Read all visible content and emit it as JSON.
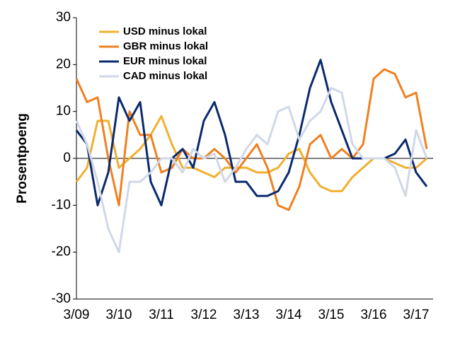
{
  "chart_data": {
    "type": "line",
    "y_label": "Prosentpoeng",
    "x": [
      "3/09",
      "6/09",
      "9/09",
      "12/09",
      "3/10",
      "6/10",
      "9/10",
      "12/10",
      "3/11",
      "6/11",
      "9/11",
      "12/11",
      "3/12",
      "6/12",
      "9/12",
      "12/12",
      "3/13",
      "6/13",
      "9/13",
      "12/13",
      "3/14",
      "6/14",
      "9/14",
      "12/14",
      "3/15",
      "6/15",
      "9/15",
      "12/15",
      "3/16",
      "6/16",
      "9/16",
      "12/16",
      "3/17",
      "6/17"
    ],
    "xticks": [
      "3/09",
      "3/10",
      "3/11",
      "3/12",
      "3/13",
      "3/14",
      "3/15",
      "3/16",
      "3/17"
    ],
    "ylim": [
      -30,
      30
    ],
    "yticks": [
      -30,
      -20,
      -10,
      0,
      10,
      20,
      30
    ],
    "grid": false,
    "legend": "upper left",
    "series": [
      {
        "name": "USD minus lokal",
        "color": "#f0b030",
        "values": [
          -5,
          -2,
          8,
          8,
          -2,
          0,
          2,
          5,
          9,
          3,
          -2,
          -2,
          -3,
          -4,
          -2,
          -2,
          -2,
          -3,
          -3,
          -2,
          1,
          2,
          -3,
          -6,
          -7,
          -7,
          -4,
          -2,
          0,
          0,
          -1,
          -2,
          -2,
          0
        ]
      },
      {
        "name": "GBR minus lokal",
        "color": "#f08020",
        "values": [
          17,
          12,
          13,
          0,
          -10,
          10,
          5,
          5,
          -3,
          -2,
          2,
          0,
          0,
          2,
          0,
          -3,
          0,
          3,
          -2,
          -10,
          -11,
          -6,
          3,
          5,
          0,
          2,
          0,
          3,
          17,
          19,
          18,
          13,
          14,
          2
        ]
      },
      {
        "name": "EUR minus lokal",
        "color": "#0a2a6e",
        "values": [
          6,
          3,
          -10,
          -3,
          13,
          8,
          12,
          -5,
          -10,
          0,
          2,
          -2,
          8,
          12,
          5,
          -5,
          -5,
          -8,
          -8,
          -7,
          -3,
          5,
          15,
          21,
          12,
          6,
          0,
          0,
          0,
          0,
          1,
          4,
          -3,
          -6
        ]
      },
      {
        "name": "CAD minus lokal",
        "color": "#d0d8e8",
        "values": [
          8,
          3,
          -5,
          -15,
          -20,
          -5,
          -5,
          -3,
          0,
          0,
          -3,
          2,
          0,
          1,
          -5,
          -2,
          2,
          5,
          3,
          10,
          11,
          4,
          8,
          10,
          15,
          14,
          3,
          0,
          0,
          0,
          -2,
          -8,
          6,
          0
        ]
      }
    ]
  }
}
